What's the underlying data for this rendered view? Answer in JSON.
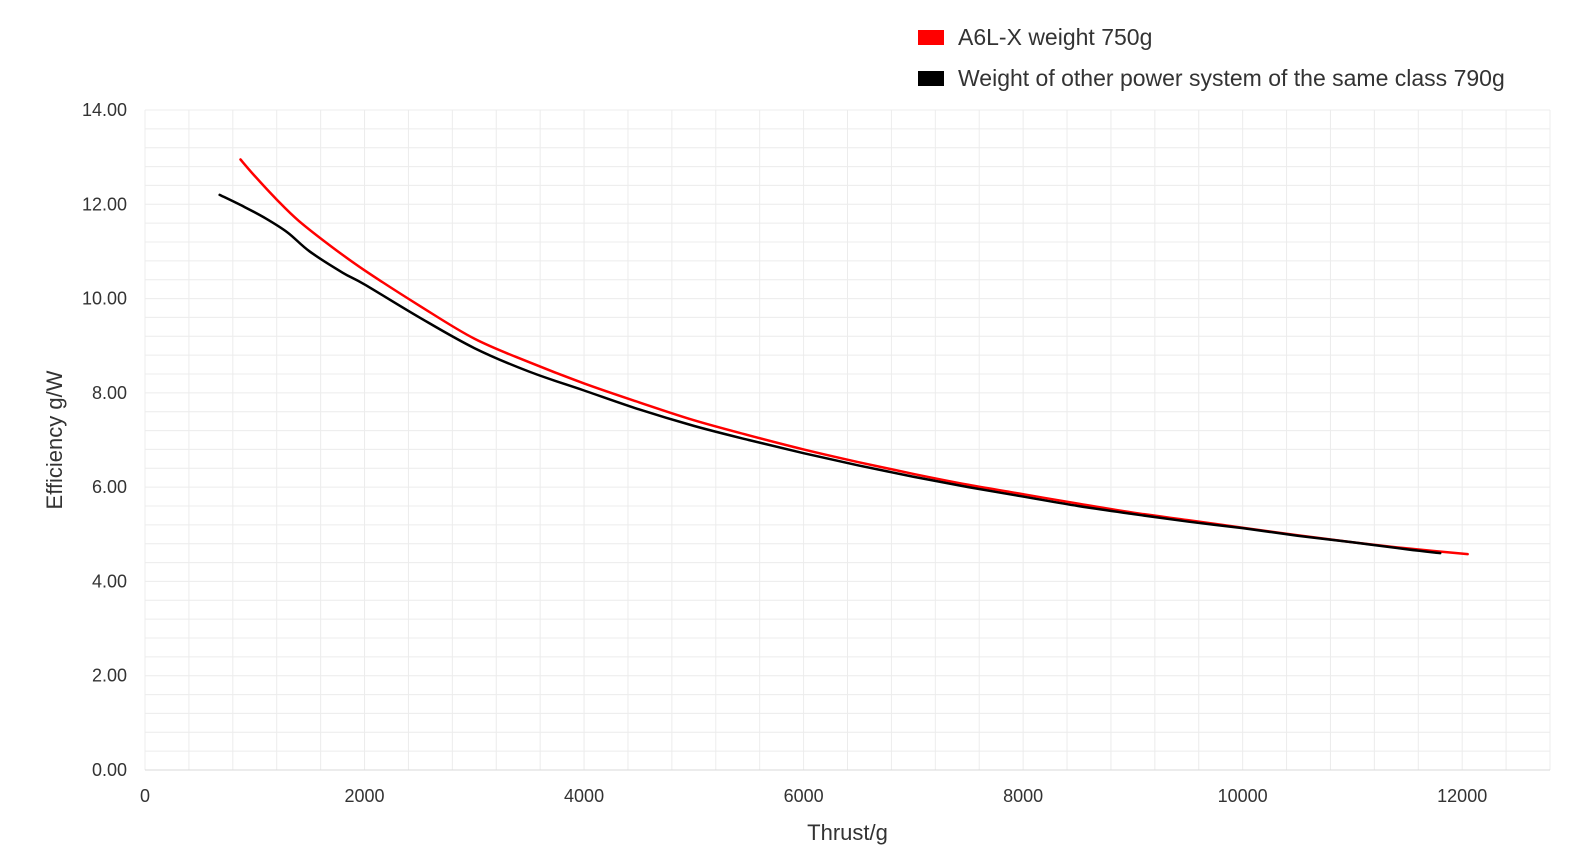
{
  "chart_data": {
    "type": "line",
    "title": "",
    "xlabel": "Thrust/g",
    "ylabel": "Efficiency g/W",
    "xlim": [
      0,
      12800
    ],
    "ylim": [
      0,
      14
    ],
    "x_ticks": [
      "0",
      "2000",
      "4000",
      "6000",
      "8000",
      "10000",
      "12000"
    ],
    "x_tick_values": [
      0,
      2000,
      4000,
      6000,
      8000,
      10000,
      12000
    ],
    "y_ticks": [
      "0.00",
      "2.00",
      "4.00",
      "6.00",
      "8.00",
      "10.00",
      "12.00",
      "14.00"
    ],
    "y_tick_values": [
      0,
      2,
      4,
      6,
      8,
      10,
      12,
      14
    ],
    "grid": true,
    "legend_position": "top-right",
    "series": [
      {
        "name": "A6L-X weight 750g",
        "color": "#ff0000",
        "x": [
          870,
          1000,
          1200,
          1400,
          1700,
          2000,
          2500,
          3000,
          3500,
          4000,
          4500,
          5000,
          5500,
          6000,
          6500,
          7000,
          7500,
          8000,
          8500,
          9000,
          9500,
          10000,
          10500,
          11000,
          11500,
          12050
        ],
        "y": [
          12.95,
          12.6,
          12.1,
          11.65,
          11.1,
          10.6,
          9.85,
          9.15,
          8.65,
          8.2,
          7.8,
          7.42,
          7.1,
          6.8,
          6.53,
          6.28,
          6.05,
          5.85,
          5.65,
          5.46,
          5.3,
          5.14,
          4.98,
          4.83,
          4.7,
          4.58
        ]
      },
      {
        "name": "Weight of other power system of the same class 790g",
        "color": "#000000",
        "x": [
          680,
          900,
          1100,
          1300,
          1500,
          1800,
          2000,
          2500,
          3000,
          3500,
          4000,
          4500,
          5000,
          5500,
          6000,
          6500,
          7000,
          7500,
          8000,
          8500,
          9000,
          9500,
          10000,
          10500,
          11000,
          11500,
          11800
        ],
        "y": [
          12.2,
          11.95,
          11.7,
          11.4,
          11.0,
          10.55,
          10.3,
          9.6,
          8.95,
          8.45,
          8.05,
          7.65,
          7.3,
          7.0,
          6.72,
          6.46,
          6.22,
          6.0,
          5.8,
          5.6,
          5.43,
          5.27,
          5.13,
          4.97,
          4.83,
          4.68,
          4.6
        ]
      }
    ]
  }
}
